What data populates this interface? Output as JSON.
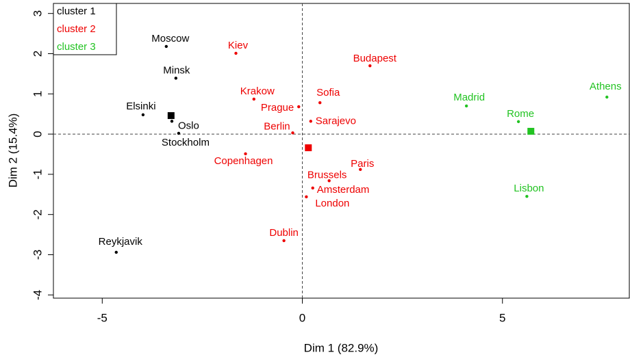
{
  "chart_data": {
    "type": "scatter",
    "xlabel": "Dim 1 (82.9%)",
    "ylabel": "Dim 2 (15.4%)",
    "xlim": [
      -6.22,
      8.17
    ],
    "ylim": [
      -4.08,
      3.25
    ],
    "xticks": [
      -5,
      0,
      5
    ],
    "yticks": [
      -4,
      -3,
      -2,
      -1,
      0,
      1,
      2,
      3
    ],
    "legend": "top-left",
    "series": [
      {
        "name": "cluster 1",
        "color": "#000000",
        "labels": [
          "Moscow",
          "Minsk",
          "Elsinki",
          "Oslo",
          "Stockholm",
          "Reykjavik"
        ],
        "x": [
          -3.4,
          -3.16,
          -3.98,
          -3.26,
          -3.09,
          -4.65
        ],
        "y": [
          2.18,
          1.39,
          0.48,
          0.32,
          0.02,
          -2.94
        ],
        "centroid": {
          "x": -3.28,
          "y": 0.46
        }
      },
      {
        "name": "cluster 2",
        "color": "#ee0000",
        "labels": [
          "Kiev",
          "Budapest",
          "Krakow",
          "Sofia",
          "Prague",
          "Sarajevo",
          "Berlin",
          "Copenhagen",
          "Paris",
          "Brussels",
          "Amsterdam",
          "London",
          "Dublin"
        ],
        "x": [
          -1.66,
          1.69,
          -1.21,
          0.44,
          -0.09,
          0.21,
          -0.24,
          -1.42,
          1.45,
          0.67,
          0.26,
          0.1,
          -0.46
        ],
        "y": [
          2.01,
          1.7,
          0.87,
          0.78,
          0.68,
          0.32,
          0.03,
          -0.49,
          -0.88,
          -1.16,
          -1.34,
          -1.56,
          -2.65
        ],
        "centroid": {
          "x": 0.15,
          "y": -0.34
        }
      },
      {
        "name": "cluster 3",
        "color": "#22c322",
        "labels": [
          "Madrid",
          "Athens",
          "Rome",
          "Lisbon"
        ],
        "x": [
          4.1,
          7.61,
          5.4,
          5.61
        ],
        "y": [
          0.7,
          0.92,
          0.31,
          -1.55
        ],
        "centroid": {
          "x": 5.71,
          "y": 0.07
        }
      }
    ]
  }
}
